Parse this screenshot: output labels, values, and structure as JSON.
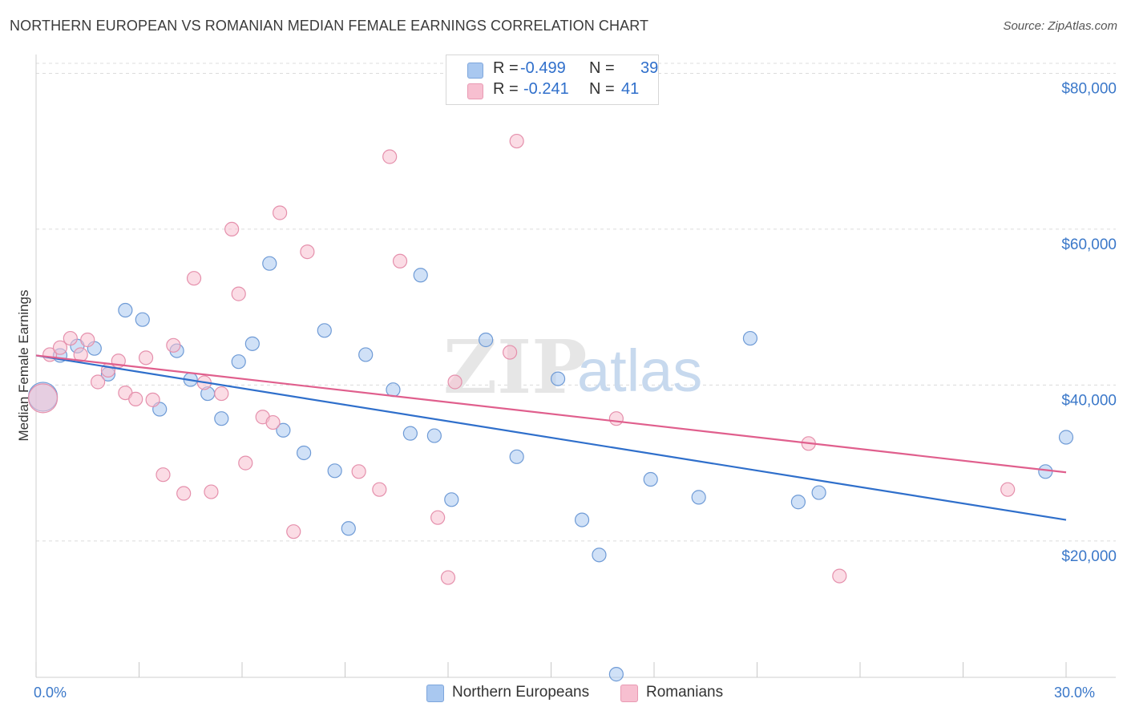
{
  "header": {
    "title": "NORTHERN EUROPEAN VS ROMANIAN MEDIAN FEMALE EARNINGS CORRELATION CHART",
    "source": "Source: ZipAtlas.com"
  },
  "watermark": {
    "zip": "ZIP",
    "atlas": "atlas"
  },
  "stats": [
    {
      "r_label": "R =",
      "r_value": "-0.499",
      "n_label": "N =",
      "n_value": "39",
      "color": "#a9c8f0",
      "border": "#7ea6dc"
    },
    {
      "r_label": "R =",
      "r_value": "-0.241",
      "n_label": "N =",
      "n_value": "41",
      "color": "#f7bfd0",
      "border": "#e99ab3"
    }
  ],
  "legend": [
    {
      "label": "Northern Europeans",
      "color": "#a9c8f0",
      "border": "#7ea6dc"
    },
    {
      "label": "Romanians",
      "color": "#f7bfd0",
      "border": "#e99ab3"
    }
  ],
  "chart_data": {
    "type": "scatter",
    "title": "NORTHERN EUROPEAN VS ROMANIAN MEDIAN FEMALE EARNINGS CORRELATION CHART",
    "xlabel": "",
    "ylabel": "Median Female Earnings",
    "xlim": [
      0,
      30
    ],
    "ylim": [
      2500,
      82000
    ],
    "x_tick_labels": [
      {
        "value": 0,
        "label": "0.0%"
      },
      {
        "value": 30,
        "label": "30.0%"
      }
    ],
    "x_minor_ticks": [
      3,
      6,
      9,
      12,
      15,
      18,
      21,
      24,
      27
    ],
    "y_ticks": [
      {
        "value": 20000,
        "label": "$20,000"
      },
      {
        "value": 40000,
        "label": "$40,000"
      },
      {
        "value": 60000,
        "label": "$60,000"
      },
      {
        "value": 80000,
        "label": "$80,000"
      }
    ],
    "grid": "horizontal-dashed",
    "series": [
      {
        "name": "Northern Europeans",
        "color": "#a9c8f0",
        "stroke": "#6f9bd6",
        "trend_color": "#2f6fcb",
        "trend": {
          "x0": 0,
          "y0": 43800,
          "x1": 30,
          "y1": 22700
        },
        "points": [
          {
            "x": 0.2,
            "y": 38500,
            "big": true
          },
          {
            "x": 0.7,
            "y": 43800
          },
          {
            "x": 1.2,
            "y": 45000
          },
          {
            "x": 1.7,
            "y": 44700
          },
          {
            "x": 2.1,
            "y": 41400
          },
          {
            "x": 2.6,
            "y": 49600
          },
          {
            "x": 3.1,
            "y": 48400
          },
          {
            "x": 3.6,
            "y": 36900
          },
          {
            "x": 4.1,
            "y": 44400
          },
          {
            "x": 4.5,
            "y": 40700
          },
          {
            "x": 5.0,
            "y": 38900
          },
          {
            "x": 5.4,
            "y": 35700
          },
          {
            "x": 5.9,
            "y": 43000
          },
          {
            "x": 6.3,
            "y": 45300
          },
          {
            "x": 6.8,
            "y": 55600
          },
          {
            "x": 7.2,
            "y": 34200
          },
          {
            "x": 7.8,
            "y": 31300
          },
          {
            "x": 8.4,
            "y": 47000
          },
          {
            "x": 8.7,
            "y": 29000
          },
          {
            "x": 9.1,
            "y": 21600
          },
          {
            "x": 9.6,
            "y": 43900
          },
          {
            "x": 10.4,
            "y": 39400
          },
          {
            "x": 10.9,
            "y": 33800
          },
          {
            "x": 11.2,
            "y": 54100
          },
          {
            "x": 11.6,
            "y": 33500
          },
          {
            "x": 12.1,
            "y": 25300
          },
          {
            "x": 13.1,
            "y": 45800
          },
          {
            "x": 14.0,
            "y": 30800
          },
          {
            "x": 15.2,
            "y": 40800
          },
          {
            "x": 15.9,
            "y": 22700
          },
          {
            "x": 16.4,
            "y": 18200
          },
          {
            "x": 16.9,
            "y": 2900
          },
          {
            "x": 17.9,
            "y": 27900
          },
          {
            "x": 19.3,
            "y": 25600
          },
          {
            "x": 20.8,
            "y": 46000
          },
          {
            "x": 22.2,
            "y": 25000
          },
          {
            "x": 22.8,
            "y": 26200
          },
          {
            "x": 29.4,
            "y": 28900
          },
          {
            "x": 30.0,
            "y": 33300
          }
        ]
      },
      {
        "name": "Romanians",
        "color": "#f7bfd0",
        "stroke": "#e590ac",
        "trend_color": "#e05f8d",
        "trend": {
          "x0": 0,
          "y0": 43800,
          "x1": 30,
          "y1": 28800
        },
        "points": [
          {
            "x": 0.2,
            "y": 38300,
            "big": true
          },
          {
            "x": 0.4,
            "y": 43900
          },
          {
            "x": 0.7,
            "y": 44800
          },
          {
            "x": 1.0,
            "y": 46000
          },
          {
            "x": 1.3,
            "y": 43900
          },
          {
            "x": 1.5,
            "y": 45800
          },
          {
            "x": 1.8,
            "y": 40400
          },
          {
            "x": 2.1,
            "y": 41900
          },
          {
            "x": 2.4,
            "y": 43100
          },
          {
            "x": 2.6,
            "y": 39000
          },
          {
            "x": 2.9,
            "y": 38200
          },
          {
            "x": 3.2,
            "y": 43500
          },
          {
            "x": 3.4,
            "y": 38100
          },
          {
            "x": 3.7,
            "y": 28500
          },
          {
            "x": 4.0,
            "y": 45100
          },
          {
            "x": 4.3,
            "y": 26100
          },
          {
            "x": 4.6,
            "y": 53700
          },
          {
            "x": 4.9,
            "y": 40300
          },
          {
            "x": 5.1,
            "y": 26300
          },
          {
            "x": 5.4,
            "y": 38900
          },
          {
            "x": 5.7,
            "y": 60000
          },
          {
            "x": 5.9,
            "y": 51700
          },
          {
            "x": 6.1,
            "y": 30000
          },
          {
            "x": 6.6,
            "y": 35900
          },
          {
            "x": 6.9,
            "y": 35200
          },
          {
            "x": 7.1,
            "y": 62100
          },
          {
            "x": 7.5,
            "y": 21200
          },
          {
            "x": 7.9,
            "y": 57100
          },
          {
            "x": 9.4,
            "y": 28900
          },
          {
            "x": 10.0,
            "y": 26600
          },
          {
            "x": 10.3,
            "y": 69300
          },
          {
            "x": 10.6,
            "y": 55900
          },
          {
            "x": 11.7,
            "y": 23000
          },
          {
            "x": 12.0,
            "y": 15300
          },
          {
            "x": 12.2,
            "y": 40400
          },
          {
            "x": 13.8,
            "y": 44200
          },
          {
            "x": 14.0,
            "y": 71300
          },
          {
            "x": 16.9,
            "y": 35700
          },
          {
            "x": 22.5,
            "y": 32500
          },
          {
            "x": 23.4,
            "y": 15500
          },
          {
            "x": 28.3,
            "y": 26600
          }
        ]
      }
    ]
  }
}
